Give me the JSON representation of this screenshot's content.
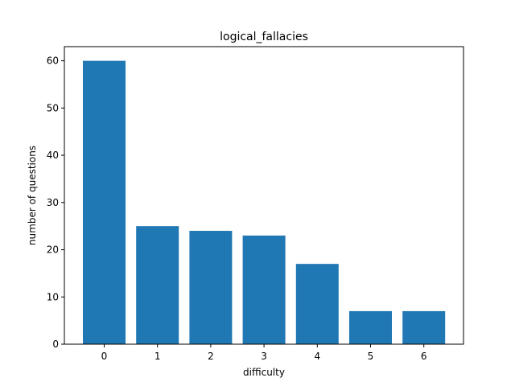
{
  "chart_data": {
    "type": "bar",
    "title": "logical_fallacies",
    "xlabel": "difficulty",
    "ylabel": "number of questions",
    "categories": [
      "0",
      "1",
      "2",
      "3",
      "4",
      "5",
      "6"
    ],
    "values": [
      60,
      25,
      24,
      23,
      17,
      7,
      7
    ],
    "ylim": [
      0,
      63
    ],
    "yticks": [
      "0",
      "10",
      "20",
      "30",
      "40",
      "50",
      "60"
    ],
    "grid": false,
    "bar_color": "#1f77b4"
  }
}
